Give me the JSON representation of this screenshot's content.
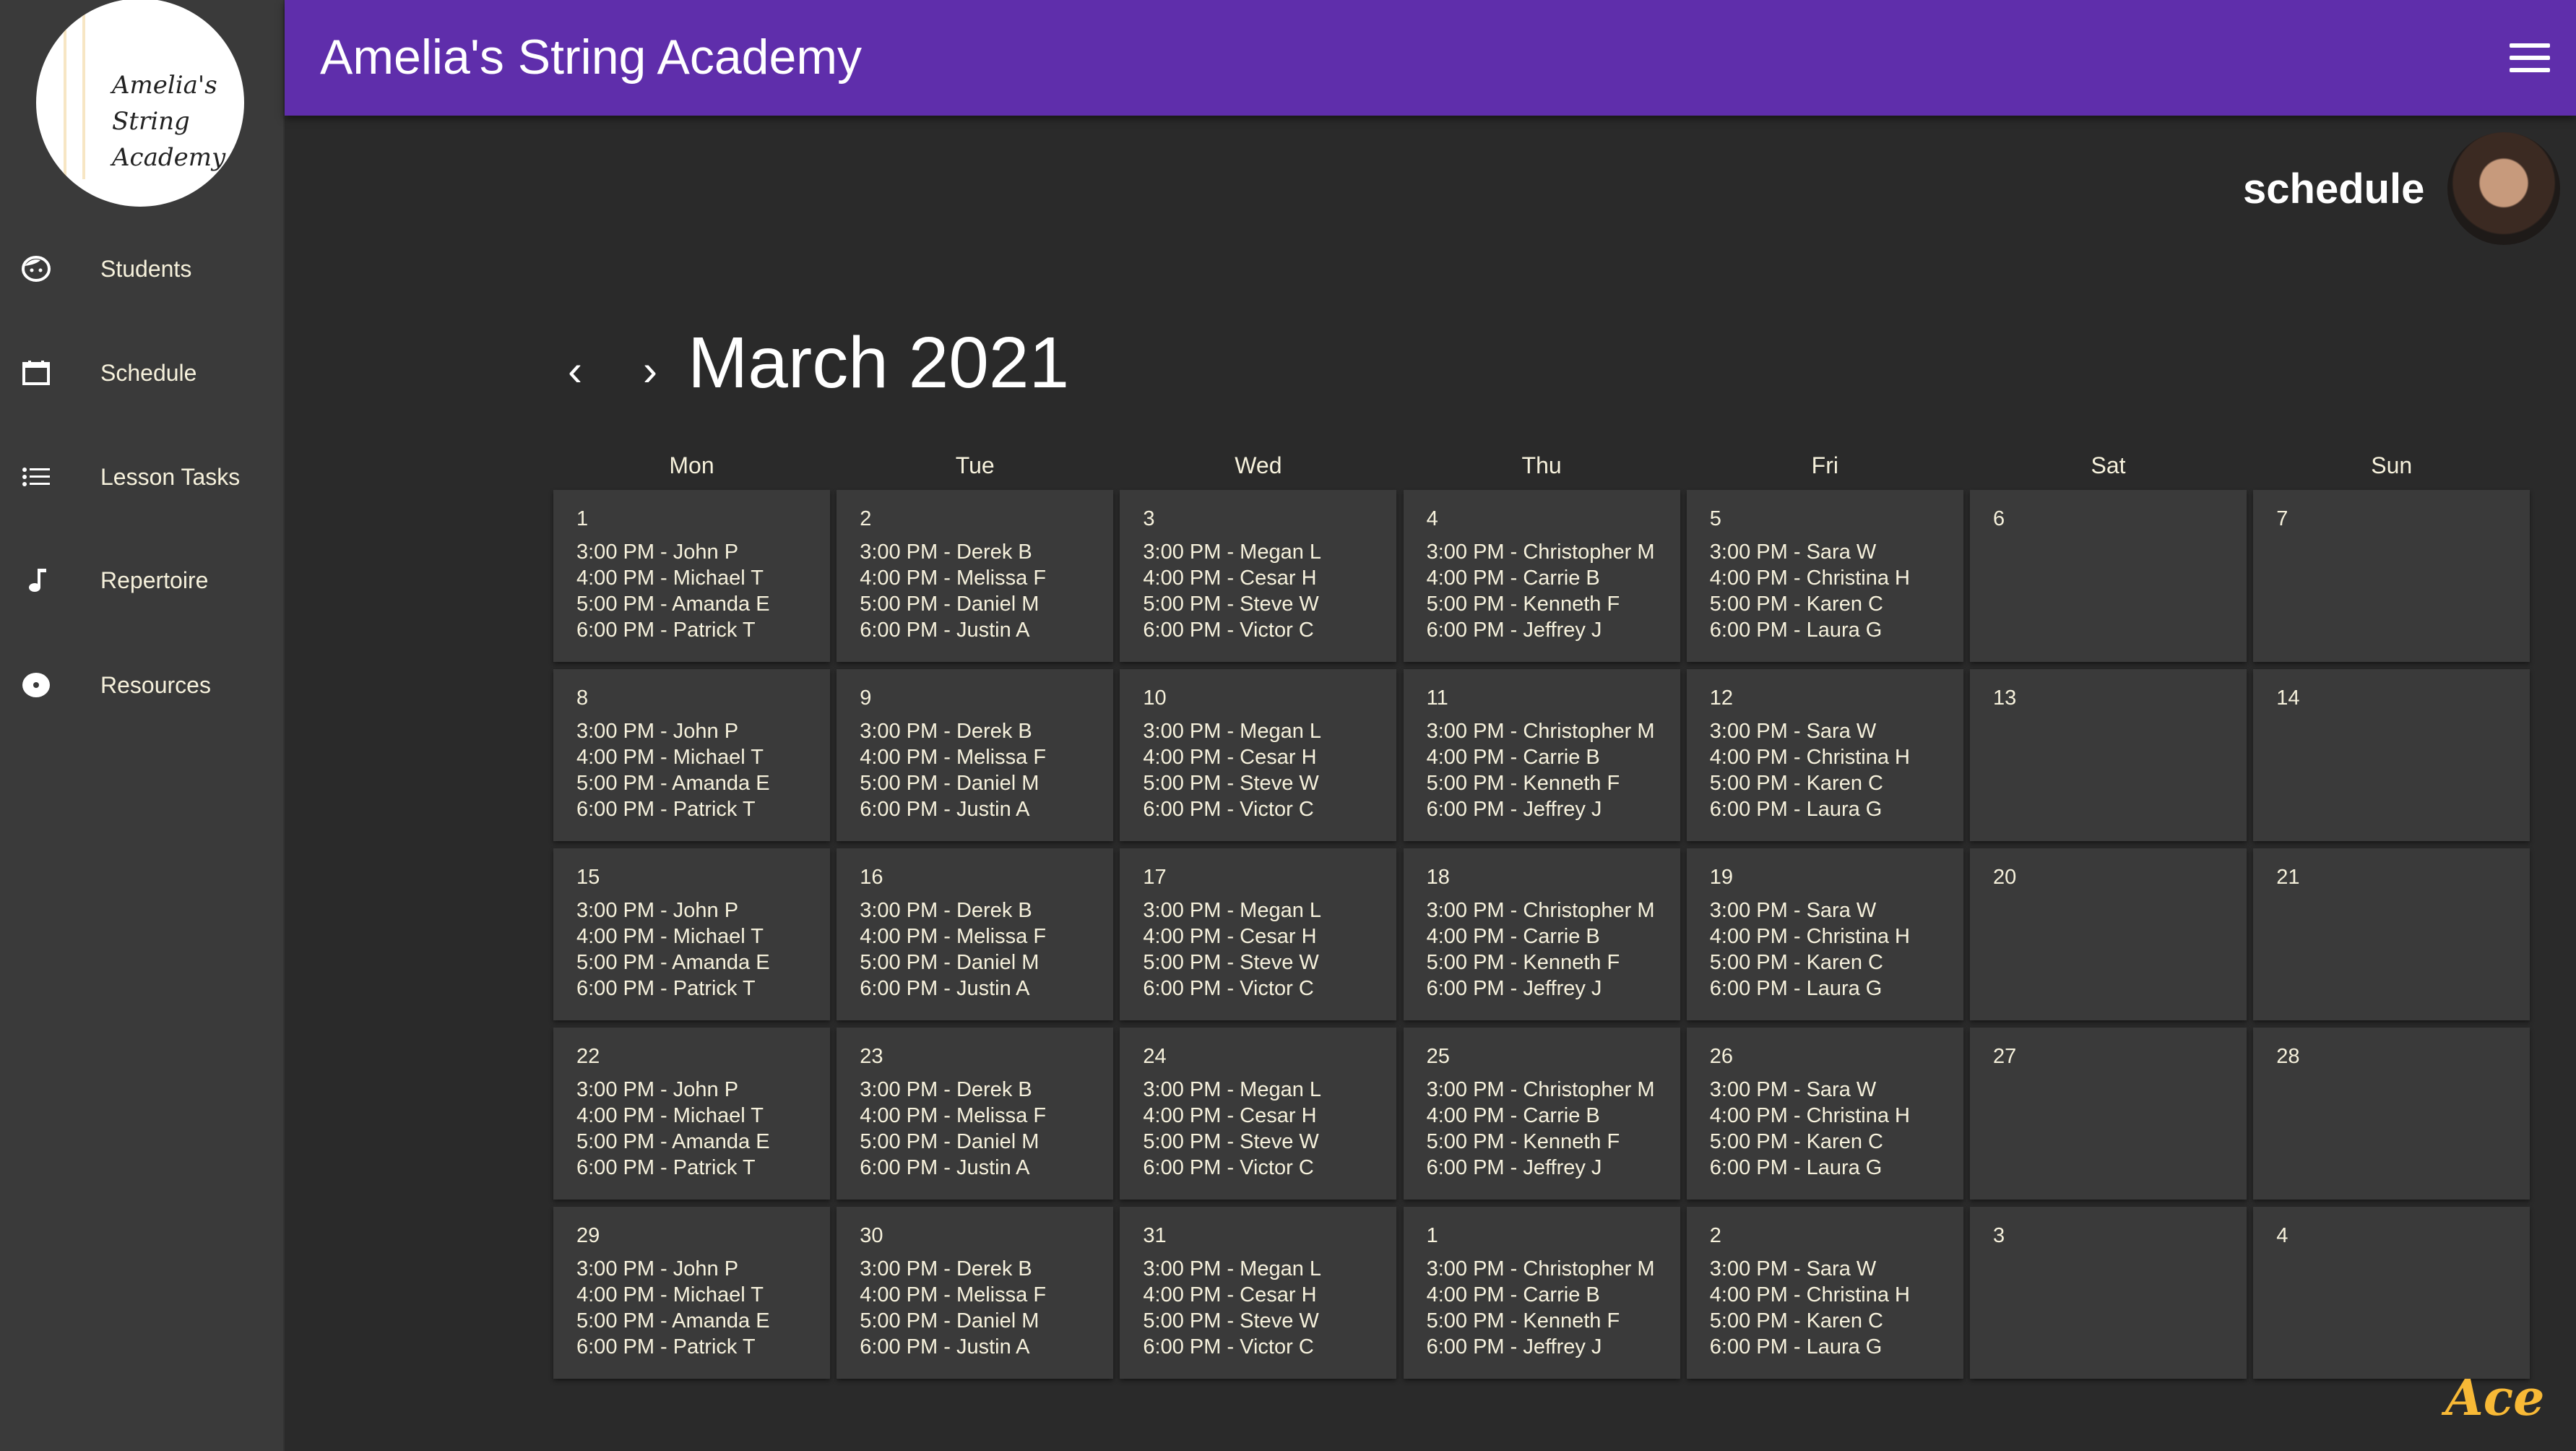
{
  "app": {
    "title": "Amelia's String Academy",
    "page_label": "schedule",
    "logo_text": [
      "Amelia's",
      "String",
      "Academy"
    ],
    "footer_logo": "Ace"
  },
  "colors": {
    "header": "#5f2eab",
    "sidebar": "#3a3a3a",
    "background": "#2a2a2a",
    "accent": "#f8b936"
  },
  "sidebar": {
    "items": [
      {
        "label": "Students",
        "icon": "face-icon"
      },
      {
        "label": "Schedule",
        "icon": "calendar-icon"
      },
      {
        "label": "Lesson Tasks",
        "icon": "list-icon"
      },
      {
        "label": "Repertoire",
        "icon": "music-note-icon"
      },
      {
        "label": "Resources",
        "icon": "disc-icon"
      }
    ]
  },
  "calendar": {
    "month_title": "March 2021",
    "prev_icon": "‹",
    "next_icon": "›",
    "weekdays": [
      "Mon",
      "Tue",
      "Wed",
      "Thu",
      "Fri",
      "Sat",
      "Sun"
    ],
    "lessons": {
      "Mon": [
        "3:00 PM - John P",
        "4:00 PM - Michael T",
        "5:00 PM - Amanda E",
        "6:00 PM - Patrick T"
      ],
      "Tue": [
        "3:00 PM - Derek B",
        "4:00 PM - Melissa F",
        "5:00 PM - Daniel M",
        "6:00 PM - Justin A"
      ],
      "Wed": [
        "3:00 PM - Megan L",
        "4:00 PM - Cesar H",
        "5:00 PM - Steve W",
        "6:00 PM - Victor C"
      ],
      "Thu": [
        "3:00 PM - Christopher M",
        "4:00 PM - Carrie B",
        "5:00 PM - Kenneth F",
        "6:00 PM - Jeffrey J"
      ],
      "Fri": [
        "3:00 PM - Sara W",
        "4:00 PM - Christina H",
        "5:00 PM - Karen C",
        "6:00 PM - Laura G"
      ],
      "Sat": [],
      "Sun": []
    },
    "weeks": [
      [
        "1",
        "2",
        "3",
        "4",
        "5",
        "6",
        "7"
      ],
      [
        "8",
        "9",
        "10",
        "11",
        "12",
        "13",
        "14"
      ],
      [
        "15",
        "16",
        "17",
        "18",
        "19",
        "20",
        "21"
      ],
      [
        "22",
        "23",
        "24",
        "25",
        "26",
        "27",
        "28"
      ],
      [
        "29",
        "30",
        "31",
        "1",
        "2",
        "3",
        "4"
      ]
    ]
  }
}
